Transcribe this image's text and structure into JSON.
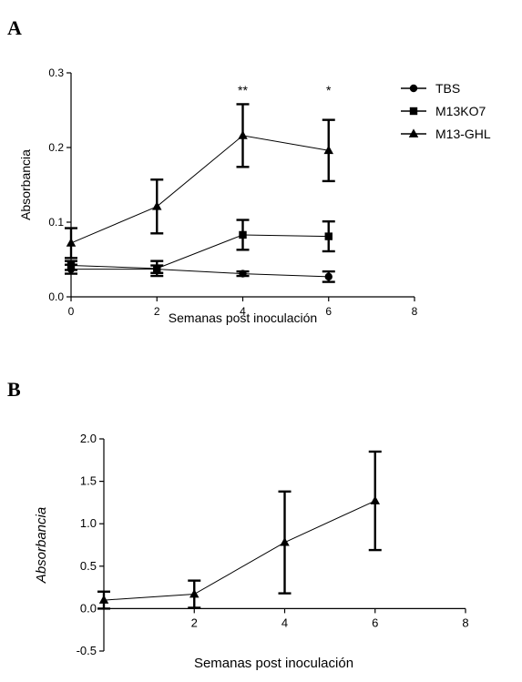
{
  "chart_data": [
    {
      "panel": "A",
      "type": "line",
      "xlabel": "Semanas post inoculación",
      "ylabel": "Absorbancia",
      "xlim": [
        0,
        8
      ],
      "ylim": [
        0,
        0.3
      ],
      "xticks": [
        0,
        2,
        4,
        6,
        8
      ],
      "yticks": [
        0.0,
        0.1,
        0.2,
        0.3
      ],
      "legend_position": "top-right",
      "series": [
        {
          "name": "TBS",
          "marker": "circle",
          "x": [
            0,
            2,
            4,
            6
          ],
          "y": [
            0.037,
            0.037,
            0.031,
            0.027
          ],
          "err": [
            0.006,
            0.005,
            0.003,
            0.007
          ]
        },
        {
          "name": "M13KO7",
          "marker": "square",
          "x": [
            0,
            2,
            4,
            6
          ],
          "y": [
            0.042,
            0.038,
            0.083,
            0.081
          ],
          "err": [
            0.006,
            0.01,
            0.02,
            0.02
          ]
        },
        {
          "name": "M13-GHL",
          "marker": "triangle",
          "x": [
            0,
            2,
            4,
            6
          ],
          "y": [
            0.072,
            0.121,
            0.216,
            0.196
          ],
          "err": [
            0.02,
            0.036,
            0.042,
            0.041
          ]
        }
      ],
      "annotations": [
        {
          "x": 4,
          "text": "**"
        },
        {
          "x": 6,
          "text": "*"
        }
      ]
    },
    {
      "panel": "B",
      "type": "line",
      "xlabel": "Semanas post inoculación",
      "ylabel": "Absorbancia",
      "xlim": [
        0,
        8
      ],
      "ylim": [
        -0.5,
        2.0
      ],
      "xticks": [
        2,
        4,
        6,
        8
      ],
      "yticks": [
        -0.5,
        0.0,
        0.5,
        1.0,
        1.5,
        2.0
      ],
      "series": [
        {
          "marker": "triangle",
          "x": [
            0,
            2,
            4,
            6
          ],
          "y": [
            0.1,
            0.17,
            0.78,
            1.27
          ],
          "err": [
            0.1,
            0.16,
            0.6,
            0.58
          ]
        }
      ]
    }
  ],
  "panels": {
    "a_label": "A",
    "b_label": "B"
  }
}
